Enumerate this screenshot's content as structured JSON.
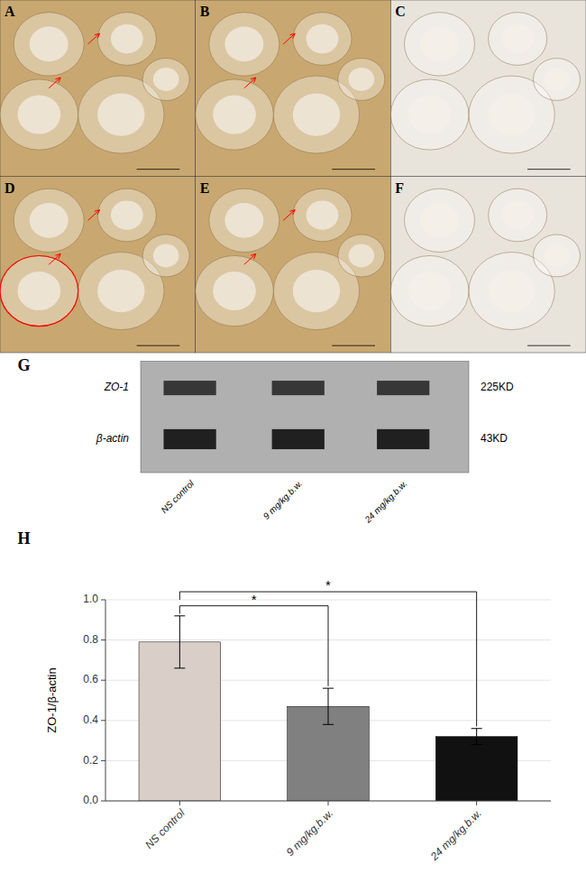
{
  "chart_data": [
    {
      "type": "image",
      "categories": [
        "A",
        "B",
        "C",
        "D",
        "E",
        "F"
      ],
      "colors": [
        "#c8a870",
        "#c8a870",
        "#e8e4dc",
        "#c8a870",
        "#c8a870",
        "#e8e4dc"
      ]
    },
    {
      "type": "blot",
      "title": "G",
      "categories": [
        "NS control",
        "9 mg/kg.b.w.",
        "24 mg/kg.b.w."
      ],
      "series": [
        {
          "name": "ZO-1",
          "label": "225KD",
          "color": "#2a2a2a"
        },
        {
          "name": "β-actin",
          "label": "43KD",
          "color": "#111111"
        }
      ]
    },
    {
      "type": "bar",
      "title": "H",
      "categories": [
        "NS control",
        "9 mg/kg.b.w.",
        "24 mg/kg.b.w."
      ],
      "values": [
        0.79,
        0.47,
        0.32
      ],
      "errors": [
        0.13,
        0.09,
        0.04
      ],
      "colors": [
        "#d9cfc8",
        "#808080",
        "#111111"
      ],
      "ylabel": "ZO-1/β-actin",
      "ylim": [
        0,
        1.0
      ],
      "yticks": [
        0.0,
        0.2,
        0.4,
        0.6,
        0.8,
        1.0
      ],
      "annotations": [
        "*",
        "*"
      ]
    }
  ]
}
